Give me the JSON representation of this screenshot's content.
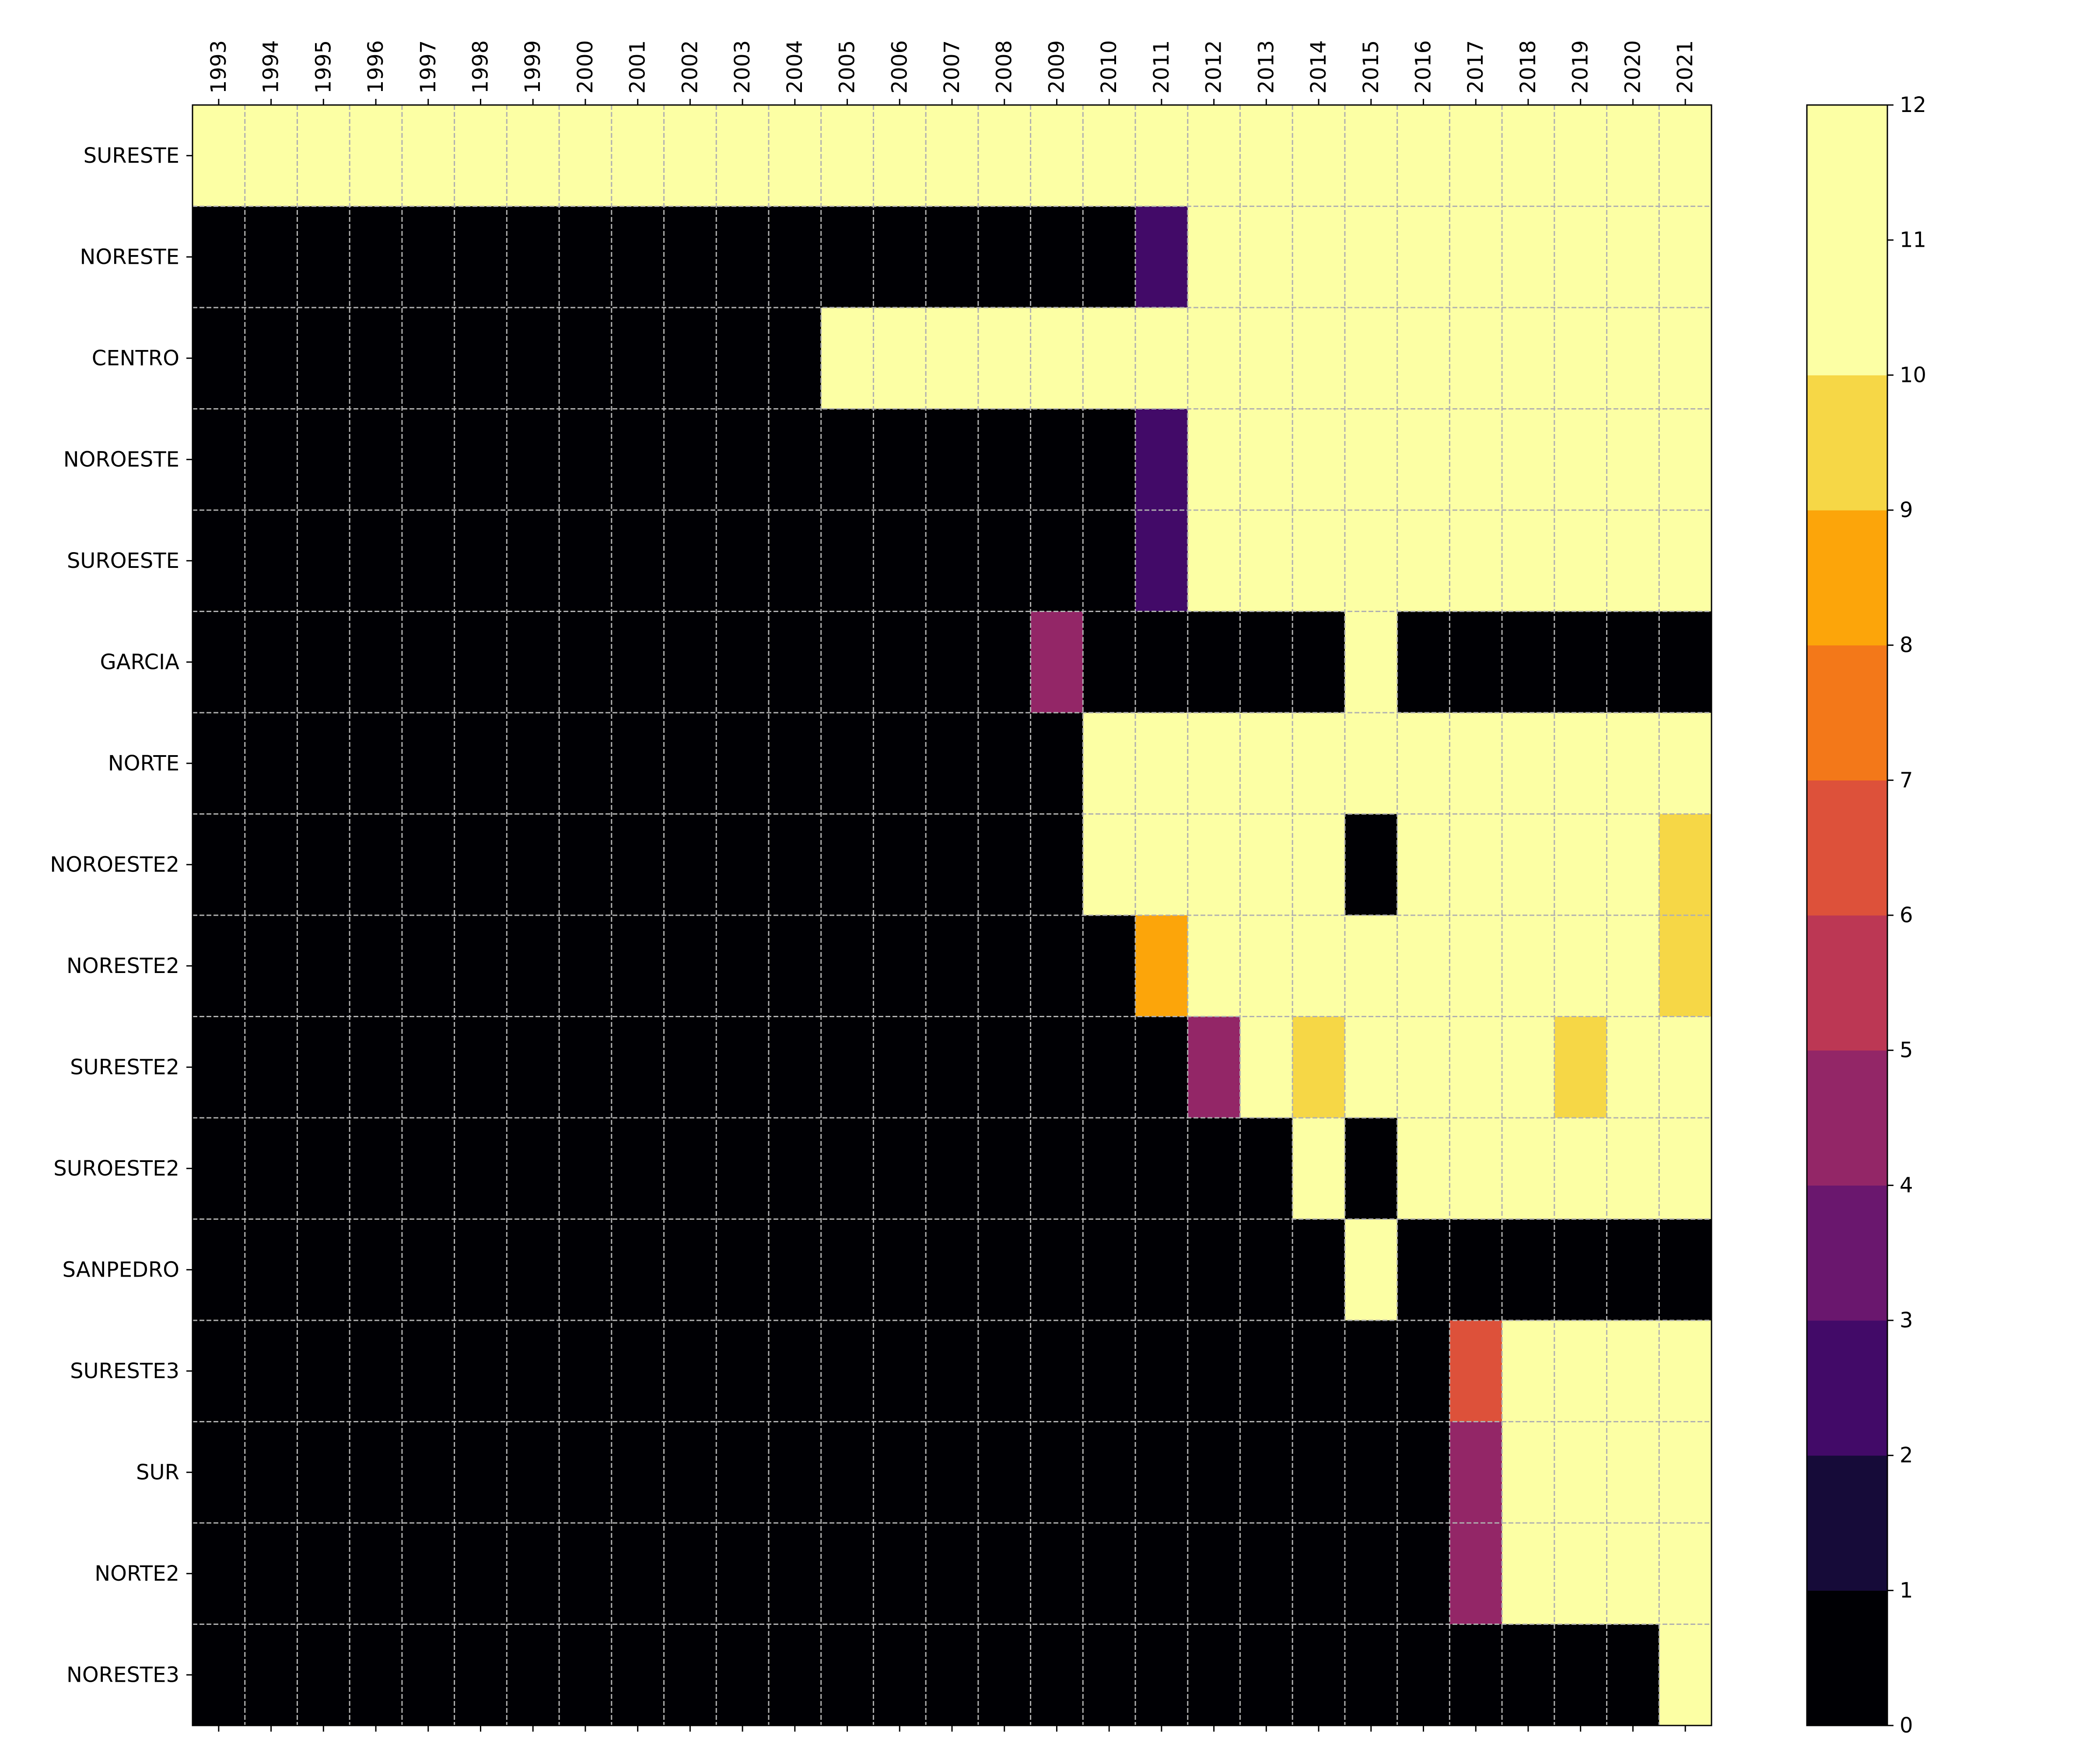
{
  "chart_data": {
    "type": "heatmap",
    "colormap": "inferno (12 discrete levels)",
    "grid": true,
    "x_axis_position": "top",
    "x": [
      "1993",
      "1994",
      "1995",
      "1996",
      "1997",
      "1998",
      "1999",
      "2000",
      "2001",
      "2002",
      "2003",
      "2004",
      "2005",
      "2006",
      "2007",
      "2008",
      "2009",
      "2010",
      "2011",
      "2012",
      "2013",
      "2014",
      "2015",
      "2016",
      "2017",
      "2018",
      "2019",
      "2020",
      "2021"
    ],
    "y": [
      "SURESTE",
      "NORESTE",
      "CENTRO",
      "NOROESTE",
      "SUROESTE",
      "GARCIA",
      "NORTE",
      "NOROESTE2",
      "NORESTE2",
      "SURESTE2",
      "SUROESTE2",
      "SANPEDRO",
      "SURESTE3",
      "SUR",
      "NORTE2",
      "NORESTE3"
    ],
    "values": [
      [
        12,
        12,
        12,
        12,
        12,
        11,
        12,
        11,
        12,
        12,
        10,
        12,
        12,
        12,
        12,
        10,
        12,
        12,
        12,
        11,
        12,
        12,
        12,
        12,
        12,
        12,
        12,
        12,
        12
      ],
      [
        0,
        0,
        0,
        0,
        0,
        0,
        0,
        0,
        0,
        0,
        0,
        0,
        0,
        0,
        0,
        0,
        0,
        0,
        2,
        12,
        12,
        12,
        12,
        12,
        12,
        12,
        12,
        12,
        10
      ],
      [
        0,
        0,
        0,
        0,
        0,
        0,
        0,
        0,
        0,
        0,
        0,
        0,
        12,
        12,
        12,
        12,
        12,
        12,
        12,
        12,
        12,
        12,
        12,
        12,
        12,
        12,
        12,
        12,
        10
      ],
      [
        0,
        0,
        0,
        0,
        0,
        0,
        0,
        0,
        0,
        0,
        0,
        0,
        0,
        0,
        0,
        0,
        0,
        0,
        2,
        12,
        12,
        12,
        12,
        12,
        12,
        12,
        12,
        12,
        12
      ],
      [
        0,
        0,
        0,
        0,
        0,
        0,
        0,
        0,
        0,
        0,
        0,
        0,
        0,
        0,
        0,
        0,
        0,
        0,
        2,
        12,
        12,
        12,
        12,
        12,
        12,
        12,
        12,
        12,
        12
      ],
      [
        0,
        0,
        0,
        0,
        0,
        0,
        0,
        0,
        0,
        0,
        0,
        0,
        0,
        0,
        0,
        0,
        4,
        0,
        0,
        0,
        0,
        0,
        12,
        0,
        0,
        0,
        0,
        0,
        0
      ],
      [
        0,
        0,
        0,
        0,
        0,
        0,
        0,
        0,
        0,
        0,
        0,
        0,
        0,
        0,
        0,
        0,
        0,
        12,
        12,
        12,
        12,
        12,
        12,
        12,
        12,
        12,
        12,
        12,
        10
      ],
      [
        0,
        0,
        0,
        0,
        0,
        0,
        0,
        0,
        0,
        0,
        0,
        0,
        0,
        0,
        0,
        0,
        0,
        12,
        12,
        12,
        12,
        12,
        0,
        12,
        12,
        12,
        12,
        12,
        9
      ],
      [
        0,
        0,
        0,
        0,
        0,
        0,
        0,
        0,
        0,
        0,
        0,
        0,
        0,
        0,
        0,
        0,
        0,
        0,
        8,
        12,
        12,
        12,
        12,
        12,
        12,
        12,
        12,
        12,
        9
      ],
      [
        0,
        0,
        0,
        0,
        0,
        0,
        0,
        0,
        0,
        0,
        0,
        0,
        0,
        0,
        0,
        0,
        0,
        0,
        0,
        4,
        12,
        9,
        12,
        12,
        12,
        12,
        9,
        12,
        12
      ],
      [
        0,
        0,
        0,
        0,
        0,
        0,
        0,
        0,
        0,
        0,
        0,
        0,
        0,
        0,
        0,
        0,
        0,
        0,
        0,
        0,
        0,
        11,
        0,
        12,
        12,
        12,
        12,
        12,
        12
      ],
      [
        0,
        0,
        0,
        0,
        0,
        0,
        0,
        0,
        0,
        0,
        0,
        0,
        0,
        0,
        0,
        0,
        0,
        0,
        0,
        0,
        0,
        0,
        12,
        0,
        0,
        0,
        0,
        0,
        0
      ],
      [
        0,
        0,
        0,
        0,
        0,
        0,
        0,
        0,
        0,
        0,
        0,
        0,
        0,
        0,
        0,
        0,
        0,
        0,
        0,
        0,
        0,
        0,
        0,
        0,
        6,
        12,
        12,
        12,
        12
      ],
      [
        0,
        0,
        0,
        0,
        0,
        0,
        0,
        0,
        0,
        0,
        0,
        0,
        0,
        0,
        0,
        0,
        0,
        0,
        0,
        0,
        0,
        0,
        0,
        0,
        4,
        12,
        12,
        12,
        12
      ],
      [
        0,
        0,
        0,
        0,
        0,
        0,
        0,
        0,
        0,
        0,
        0,
        0,
        0,
        0,
        0,
        0,
        0,
        0,
        0,
        0,
        0,
        0,
        0,
        0,
        4,
        12,
        12,
        12,
        12
      ],
      [
        0,
        0,
        0,
        0,
        0,
        0,
        0,
        0,
        0,
        0,
        0,
        0,
        0,
        0,
        0,
        0,
        0,
        0,
        0,
        0,
        0,
        0,
        0,
        0,
        0,
        0,
        0,
        0,
        12
      ]
    ],
    "colorbar": {
      "ticks": [
        "0",
        "1",
        "2",
        "3",
        "4",
        "5",
        "6",
        "7",
        "8",
        "9",
        "10",
        "11",
        "12"
      ],
      "range": [
        0,
        12
      ],
      "colors": [
        "#000004",
        "#160b39",
        "#420a68",
        "#6a176e",
        "#932667",
        "#bc3754",
        "#dd513a",
        "#f37819",
        "#fca50a",
        "#f6d746",
        "#fcffa4",
        "#fcffa4"
      ]
    }
  }
}
